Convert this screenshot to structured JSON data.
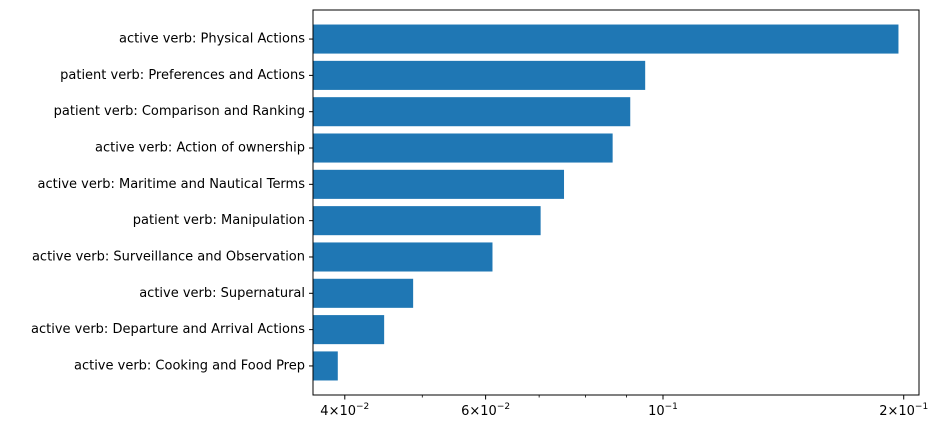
{
  "chart_data": {
    "type": "bar",
    "orientation": "horizontal",
    "x_scale": "log",
    "xlim": [
      0.0365,
      0.209
    ],
    "grid": false,
    "bar_color": "#1f77b4",
    "categories": [
      "active verb: Physical Actions",
      "patient verb: Preferences and Actions",
      "patient verb: Comparison and Ranking",
      "active verb: Action of ownership",
      "active verb: Maritime and Nautical Terms",
      "patient verb: Manipulation",
      "active verb: Surveillance and Observation",
      "active verb: Supernatural",
      "active verb: Departure and Arrival Actions",
      "active verb: Cooking and Food Prep"
    ],
    "values": [
      0.197,
      0.095,
      0.091,
      0.0865,
      0.0752,
      0.0703,
      0.0612,
      0.0487,
      0.0448,
      0.0392
    ],
    "x_ticks": [
      {
        "value": 0.04,
        "mantissa": "4",
        "base": "10",
        "exponent": "−2"
      },
      {
        "value": 0.06,
        "mantissa": "6",
        "base": "10",
        "exponent": "−2"
      },
      {
        "value": 0.1,
        "mantissa": "",
        "base": "10",
        "exponent": "−1"
      },
      {
        "value": 0.2,
        "mantissa": "2",
        "base": "10",
        "exponent": "−1"
      }
    ],
    "x_minor_ticks": [
      0.05,
      0.07,
      0.08,
      0.09
    ],
    "title": "",
    "xlabel": "",
    "ylabel": ""
  }
}
